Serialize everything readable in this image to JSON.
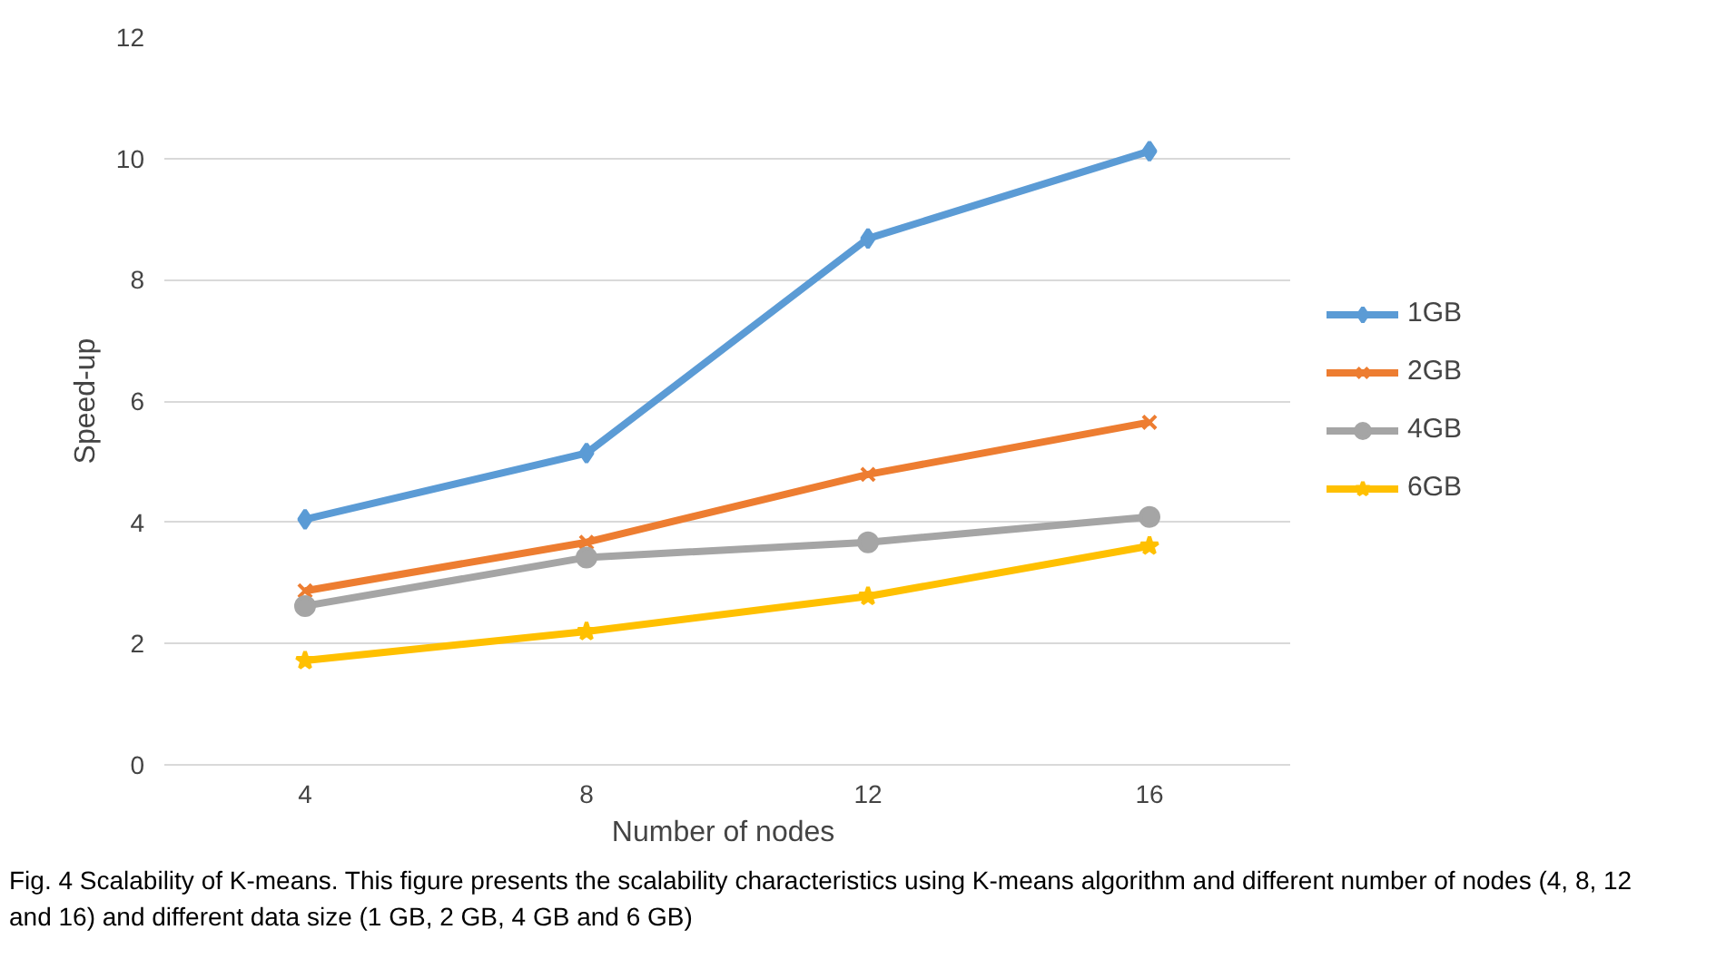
{
  "chart_data": {
    "type": "line",
    "categories": [
      "4",
      "8",
      "12",
      "16"
    ],
    "xlabel": "Number  of nodes",
    "ylabel": "Speed-up",
    "ylim": [
      0,
      12
    ],
    "yticks": [
      0,
      2,
      4,
      6,
      8,
      10,
      12
    ],
    "grid": "y",
    "legend": "right",
    "series": [
      {
        "name": "1GB",
        "color": "#5b9bd5",
        "marker": "diamond",
        "values": [
          4.05,
          5.14,
          8.68,
          10.12
        ]
      },
      {
        "name": "2GB",
        "color": "#ed7d31",
        "marker": "cross",
        "values": [
          2.87,
          3.67,
          4.79,
          5.65
        ]
      },
      {
        "name": "4GB",
        "color": "#a5a5a5",
        "marker": "circle",
        "values": [
          2.62,
          3.42,
          3.67,
          4.09
        ]
      },
      {
        "name": "6GB",
        "color": "#ffc000",
        "marker": "star",
        "values": [
          1.72,
          2.2,
          2.78,
          3.61
        ]
      }
    ],
    "annotations": [
      "Fig. 4  Scalability of K-means. This figure presents the scalability characteristics using K-means algorithm and different number of nodes (4, 8, 12 and 16) and different data size (1 GB, 2 GB, 4 GB and 6 GB)"
    ]
  }
}
